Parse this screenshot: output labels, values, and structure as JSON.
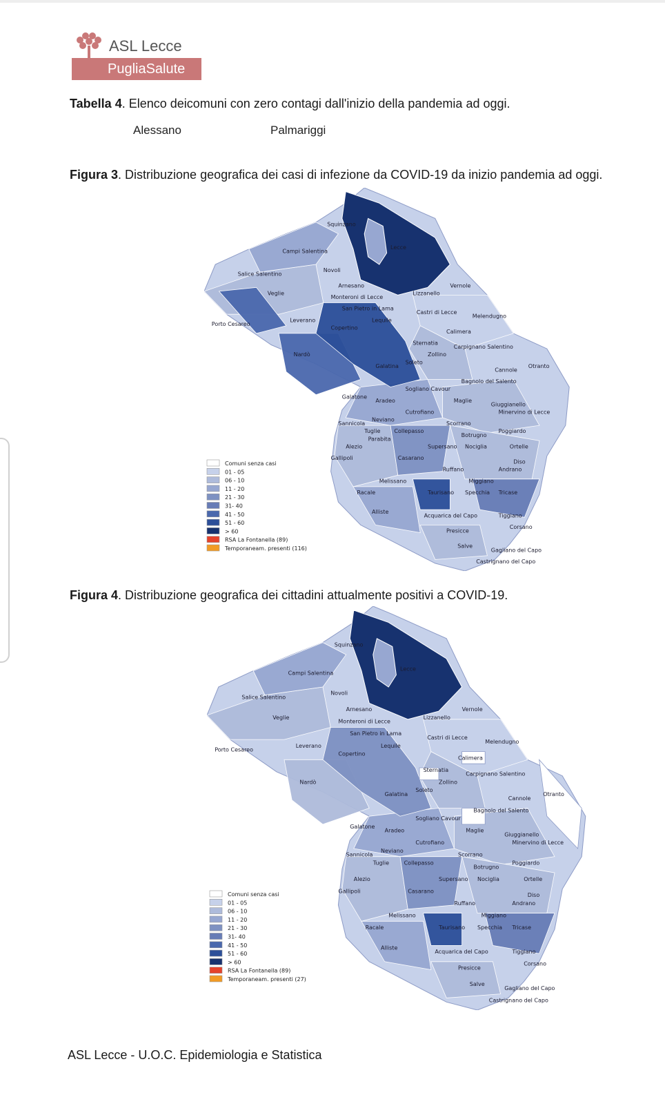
{
  "header": {
    "logo_name": "ASL Lecce",
    "logo_sub": "PugliaSalute"
  },
  "table4": {
    "label": "Tabella 4",
    "caption": ". Elenco deicomuni con zero contagi dall'inizio della pandemia ad oggi.",
    "items": [
      "Alessano",
      "Palmariggi"
    ]
  },
  "figure3": {
    "label": "Figura 3",
    "caption": ". Distribuzione  geografica dei  casi di infezione  da  COVID-19 da inizio pandemia ad oggi.",
    "legend": [
      "Comuni senza casi",
      "01 - 05",
      "06 - 10",
      "11 - 20",
      "21 - 30",
      "31- 40",
      "41 - 50",
      "51 - 60",
      "> 60",
      "RSA La Fontanella (89)",
      "Temporaneam. presenti (116)"
    ],
    "places": [
      "Squinzano",
      "Campi Salentina",
      "Lecce",
      "Salice Salentino",
      "Novoli",
      "Veglie",
      "Arnesano",
      "Vernole",
      "Lizzanello",
      "Monteroni di Lecce",
      "San Pietro in Lama",
      "Castri di Lecce",
      "Melendugno",
      "Porto Cesareo",
      "Leverano",
      "Lequile",
      "Copertino",
      "Calimera",
      "Sternatia",
      "Carpignano Salentino",
      "Zollino",
      "Nardò",
      "Soleto",
      "Galatina",
      "Cannole",
      "Otranto",
      "Bagnolo del Salento",
      "Sogliano Cavour",
      "Galatone",
      "Aradeo",
      "Maglie",
      "Giuggianello",
      "Minervino di Lecce",
      "Cutrofiano",
      "Neviano",
      "Sannicola",
      "Scorrano",
      "Tuglie",
      "Collepasso",
      "Botrugno",
      "Poggiardo",
      "Parabita",
      "Alezio",
      "Supersano",
      "Nociglia",
      "Ortelle",
      "Gallipoli",
      "Casarano",
      "Diso",
      "Ruffano",
      "Andrano",
      "Melissano",
      "Miggiano",
      "Racale",
      "Taurisano",
      "Specchia",
      "Tricase",
      "Alliste",
      "Acquarica del Capo",
      "Tiggiano",
      "Corsano",
      "Presicce",
      "Salve",
      "Gagliano del Capo",
      "Castrignano del Capo"
    ]
  },
  "figure4": {
    "label": "Figura 4",
    "caption": ". Distribuzione  geografica dei cittadini attualmente positivi a COVID-19.",
    "legend": [
      "Comuni senza casi",
      "01 - 05",
      "06 - 10",
      "11 - 20",
      "21 - 30",
      "31- 40",
      "41 - 50",
      "51 - 60",
      "> 60",
      "RSA La Fontanella (89)",
      "Temporaneam. presenti (27)"
    ],
    "places": [
      "Squinzano",
      "Campi Salentina",
      "Lecce",
      "Salice Salentino",
      "Novoli",
      "Veglie",
      "Arnesano",
      "Vernole",
      "Lizzanello",
      "Monteroni di Lecce",
      "San Pietro in Lama",
      "Castri di Lecce",
      "Melendugno",
      "Porto Cesareo",
      "Leverano",
      "Lequile",
      "Copertino",
      "Calimera",
      "Sternatia",
      "Carpignano Salentino",
      "Zollino",
      "Nardò",
      "Soleto",
      "Galatina",
      "Cannole",
      "Otranto",
      "Bagnolo del Salento",
      "Sogliano Cavour",
      "Galatone",
      "Aradeo",
      "Maglie",
      "Giuggianello",
      "Minervino di Lecce",
      "Cutrofiano",
      "Neviano",
      "Sannicola",
      "Scorrano",
      "Tuglie",
      "Collepasso",
      "Botrugno",
      "Poggiardo",
      "Alezio",
      "Supersano",
      "Nociglia",
      "Ortelle",
      "Gallipoli",
      "Casarano",
      "Diso",
      "Ruffano",
      "Andrano",
      "Melissano",
      "Miggiano",
      "Racale",
      "Taurisano",
      "Specchia",
      "Tricase",
      "Alliste",
      "Acquarica del Capo",
      "Tiggiano",
      "Corsano",
      "Presicce",
      "Salve",
      "Gagliano del Capo",
      "Castrignano del Capo"
    ]
  },
  "colors": {
    "scale": [
      "#ffffff",
      "#c6d1ea",
      "#aebbdb",
      "#97a7d1",
      "#7e91c2",
      "#677cb6",
      "#4a68ad",
      "#2c4f99",
      "#17326f",
      "#e5432c",
      "#f29b25"
    ],
    "logo": "#c97878"
  },
  "footer": {
    "text": "ASL Lecce - U.O.C. Epidemiologia e Statistica"
  }
}
